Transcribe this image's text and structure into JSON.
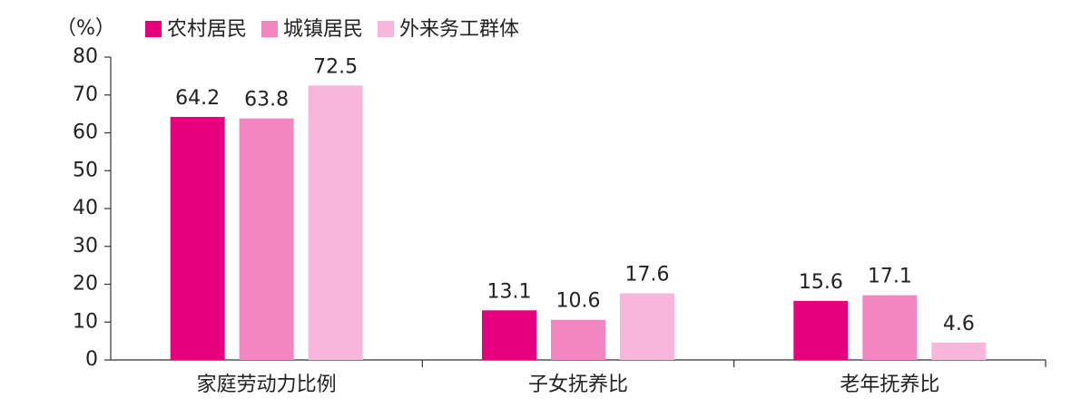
{
  "chart_data": {
    "type": "bar",
    "y_label": "（%）",
    "categories": [
      "家庭劳动力比例",
      "子女抚养比",
      "老年抚养比"
    ],
    "series": [
      {
        "name": "农村居民",
        "color": "#e6007e",
        "values": [
          64.2,
          13.1,
          15.6
        ]
      },
      {
        "name": "城镇居民",
        "color": "#f186c1",
        "values": [
          63.8,
          10.6,
          17.1
        ]
      },
      {
        "name": "外来务工群体",
        "color": "#f8b6db",
        "values": [
          72.5,
          17.6,
          4.6
        ]
      }
    ],
    "ylim": [
      0,
      80
    ],
    "yticks": [
      0,
      10,
      20,
      30,
      40,
      50,
      60,
      70,
      80
    ],
    "grid": false
  }
}
